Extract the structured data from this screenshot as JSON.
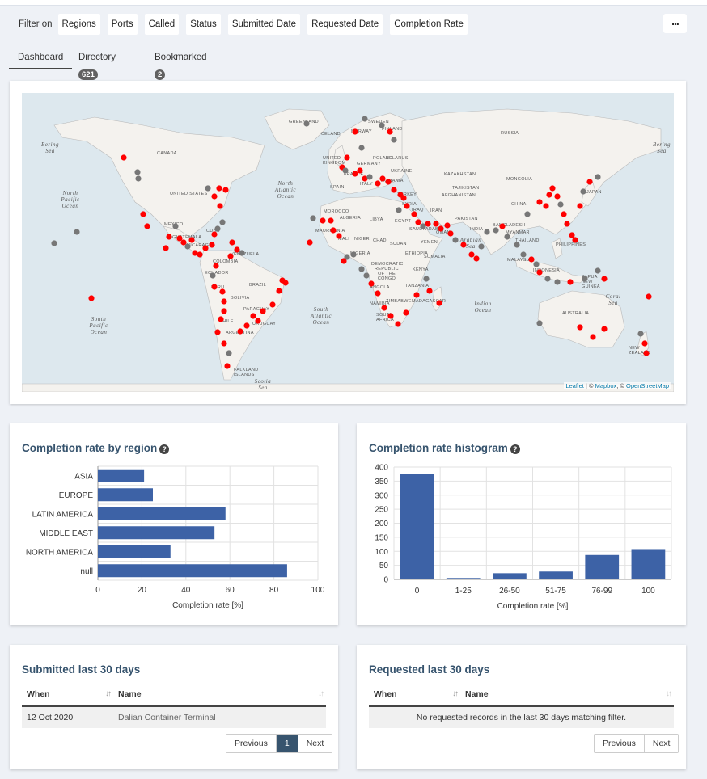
{
  "filters": {
    "label": "Filter on",
    "chips": [
      "Regions",
      "Ports",
      "Called",
      "Status",
      "Submitted Date",
      "Requested Date",
      "Completion Rate"
    ],
    "more_label": "..."
  },
  "tabs": [
    {
      "label": "Dashboard",
      "active": true
    },
    {
      "label": "Directory",
      "count": "621"
    },
    {
      "label": "Bookmarked",
      "count": "2"
    }
  ],
  "map": {
    "country_labels": [
      "CANADA",
      "UNITED STATES",
      "MEXICO",
      "CUBA",
      "VENEZUELA",
      "COLOMBIA",
      "ECUADOR",
      "PERU",
      "BRAZIL",
      "BOLIVIA",
      "PARAGUAY",
      "CHILE",
      "ARGENTINA",
      "URUGUAY",
      "FALKLAND ISLANDS",
      "GREENLAND",
      "ICELAND",
      "NORWAY",
      "SWEDEN",
      "FINLAND",
      "UNITED KINGDOM",
      "FRANCE",
      "SPAIN",
      "GERMANY",
      "POLAND",
      "UKRAINE",
      "BELARUS",
      "ROMANIA",
      "ITALY",
      "TURKEY",
      "RUSSIA",
      "KAZAKHSTAN",
      "MONGOLIA",
      "CHINA",
      "JAPAN",
      "MOROCCO",
      "ALGERIA",
      "LIBYA",
      "EGYPT",
      "MALI",
      "NIGER",
      "CHAD",
      "SUDAN",
      "NIGERIA",
      "ETHIOPIA",
      "KENYA",
      "SOUTH AFRICA",
      "NAMIBIA",
      "ZIMBABWE",
      "MADAGASCAR",
      "SAUDI ARABIA",
      "IRAN",
      "IRAQ",
      "PAKISTAN",
      "INDIA",
      "BANGLADESH",
      "MYANMAR",
      "THAILAND",
      "PHILIPPINES",
      "MALAYSIA",
      "INDONESIA",
      "PAPUA NEW GUINEA",
      "AUSTRALIA",
      "NEW ZEALAND",
      "AFGHANISTAN",
      "TAJIKISTAN",
      "OMAN",
      "YEMEN",
      "SOMALIA",
      "MAURITANIA",
      "ANGOLA",
      "DEMOCRATIC REPUBLIC OF THE CONGO",
      "TANZANIA",
      "SYRIA",
      "GUATEMALA",
      "NICARAGUA"
    ],
    "ocean_labels": [
      "Bering Sea",
      "North Pacific Ocean",
      "North Atlantic Ocean",
      "South Atlantic Ocean",
      "South Pacific Ocean",
      "Indian Ocean",
      "Arabian Sea",
      "Coral Sea",
      "Scotia Sea",
      "Bering Sea"
    ],
    "marker_colors": {
      "red": "#ff0000",
      "grey": "#777777"
    },
    "attribution": {
      "leaflet": "Leaflet",
      "sep1": " | © ",
      "mapbox": "Mapbox",
      "sep2": ", © ",
      "osm": "OpenStreetMap"
    }
  },
  "region_chart": {
    "title": "Completion rate by region",
    "help": "?",
    "chart_data": {
      "type": "bar",
      "orientation": "horizontal",
      "categories": [
        "ASIA",
        "EUROPE",
        "LATIN AMERICA",
        "MIDDLE EAST",
        "NORTH AMERICA",
        "null"
      ],
      "values": [
        21,
        25,
        58,
        53,
        33,
        86
      ],
      "xlabel": "Completion rate [%]",
      "xlim": [
        0,
        100
      ],
      "xticks": [
        0,
        20,
        40,
        60,
        80,
        100
      ],
      "grid": true,
      "bar_color": "#3d62a6"
    }
  },
  "histogram_chart": {
    "title": "Completion rate histogram",
    "help": "?",
    "chart_data": {
      "type": "bar",
      "categories": [
        "0",
        "1-25",
        "26-50",
        "51-75",
        "76-99",
        "100"
      ],
      "values": [
        375,
        5,
        22,
        28,
        87,
        108
      ],
      "xlabel": "Completion rate [%]",
      "ylim": [
        0,
        400
      ],
      "yticks": [
        0,
        50,
        100,
        150,
        200,
        250,
        300,
        350,
        400
      ],
      "grid": true,
      "bar_color": "#3d62a6"
    }
  },
  "submitted": {
    "title": "Submitted last 30 days",
    "columns": [
      "When",
      "Name"
    ],
    "rows": [
      [
        "12 Oct 2020",
        "Dalian Container Terminal"
      ]
    ],
    "pager": {
      "prev": "Previous",
      "page": "1",
      "next": "Next"
    }
  },
  "requested": {
    "title": "Requested last 30 days",
    "columns": [
      "When",
      "Name"
    ],
    "empty_message": "No requested records in the last 30 days matching filter.",
    "pager": {
      "prev": "Previous",
      "next": "Next"
    }
  }
}
